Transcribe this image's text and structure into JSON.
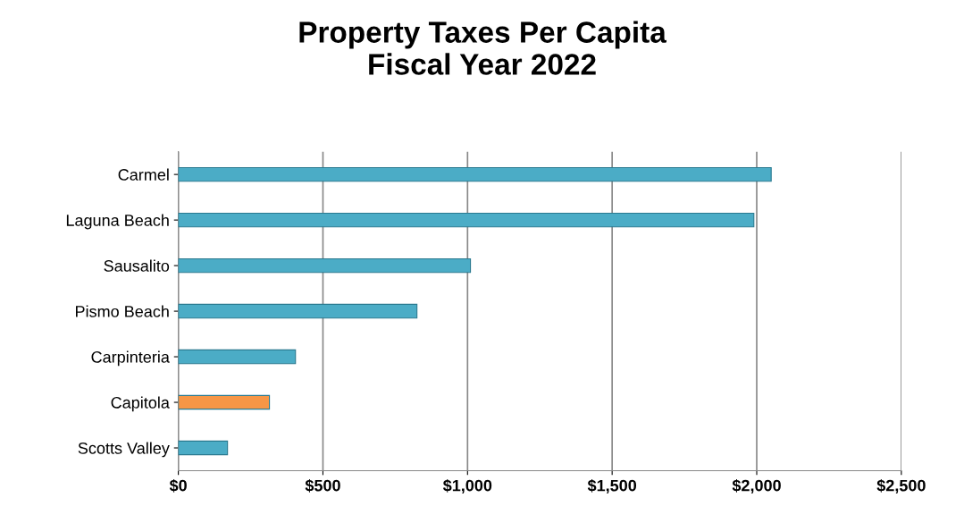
{
  "chart_data": {
    "type": "bar",
    "orientation": "horizontal",
    "title": "Property Taxes Per Capita\nFiscal Year 2022",
    "categories": [
      "Carmel",
      "Laguna Beach",
      "Sausalito",
      "Pismo Beach",
      "Carpinteria",
      "Capitola",
      "Scotts Valley"
    ],
    "values": [
      2050,
      1990,
      1010,
      825,
      405,
      315,
      170
    ],
    "colors": [
      "#4bacc6",
      "#4bacc6",
      "#4bacc6",
      "#4bacc6",
      "#4bacc6",
      "#f79646",
      "#4bacc6"
    ],
    "xlim": [
      0,
      2500
    ],
    "xticks": [
      {
        "value": 0,
        "label": "$0"
      },
      {
        "value": 500,
        "label": "$500"
      },
      {
        "value": 1000,
        "label": "$1,000"
      },
      {
        "value": 1500,
        "label": "$1,500"
      },
      {
        "value": 2000,
        "label": "$2,000"
      },
      {
        "value": 2500,
        "label": "$2,500"
      }
    ],
    "grid": "x"
  }
}
